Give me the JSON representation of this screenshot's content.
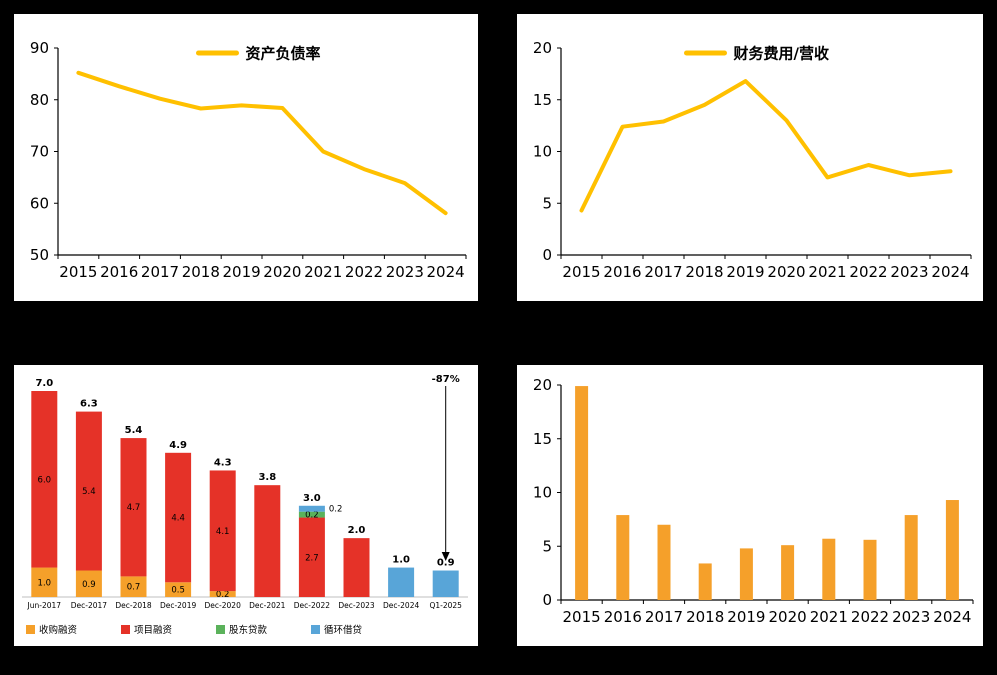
{
  "page": {
    "background": "#000000",
    "panel_background": "#FFFFFF"
  },
  "colors": {
    "yellow": "#FFC000",
    "orange": "#F5A02A",
    "red": "#E53228",
    "green": "#5BB25B",
    "blue": "#58A5D8",
    "axis": "#000000",
    "baseline_gray": "#BFBFBF",
    "small_text": "#333333"
  },
  "chart_data": [
    {
      "id": "tl",
      "type": "line",
      "legend": "资产负债率",
      "categories": [
        "2015",
        "2016",
        "2017",
        "2018",
        "2019",
        "2020",
        "2021",
        "2022",
        "2023",
        "2024"
      ],
      "values": [
        85.2,
        82.6,
        80.2,
        78.3,
        78.9,
        78.4,
        70.0,
        66.6,
        63.9,
        58.1
      ],
      "ylim": [
        50,
        90
      ],
      "yticks": [
        50,
        60,
        70,
        80,
        90
      ],
      "line_color_key": "yellow",
      "legend_position": "top-center",
      "grid": false
    },
    {
      "id": "tr",
      "type": "line",
      "legend": "财务费用/营收",
      "categories": [
        "2015",
        "2016",
        "2017",
        "2018",
        "2019",
        "2020",
        "2021",
        "2022",
        "2023",
        "2024"
      ],
      "values": [
        4.3,
        12.4,
        12.9,
        14.5,
        16.8,
        13.0,
        7.5,
        8.7,
        7.7,
        8.1
      ],
      "ylim": [
        0,
        20
      ],
      "yticks": [
        0,
        5,
        10,
        15,
        20
      ],
      "line_color_key": "yellow",
      "legend_position": "top-center",
      "grid": false
    },
    {
      "id": "bl",
      "type": "stacked-bar",
      "categories": [
        "Jun-2017",
        "Dec-2017",
        "Dec-2018",
        "Dec-2019",
        "Dec-2020",
        "Dec-2021",
        "Dec-2022",
        "Dec-2023",
        "Dec-2024",
        "Q1-2025"
      ],
      "series": [
        {
          "name": "收购融资",
          "color_key": "orange",
          "values": [
            1.0,
            0.9,
            0.7,
            0.5,
            0.2,
            0,
            0,
            0,
            0,
            0
          ],
          "labels": [
            "1.0",
            "0.9",
            "0.7",
            "0.5",
            "0.2",
            null,
            null,
            null,
            null,
            null
          ]
        },
        {
          "name": "项目融资",
          "color_key": "red",
          "values": [
            6.0,
            5.4,
            4.7,
            4.4,
            4.1,
            3.8,
            2.7,
            2.0,
            0,
            0
          ],
          "labels": [
            "6.0",
            "5.4",
            "4.7",
            "4.4",
            "4.1",
            null,
            "2.7",
            null,
            null,
            null
          ]
        },
        {
          "name": "股东贷款",
          "color_key": "green",
          "values": [
            0,
            0,
            0,
            0,
            0,
            0,
            0.2,
            0,
            0,
            0
          ],
          "labels": [
            null,
            null,
            null,
            null,
            null,
            null,
            "0.2",
            null,
            null,
            null
          ]
        },
        {
          "name": "循环借贷",
          "color_key": "blue",
          "values": [
            0,
            0,
            0,
            0,
            0,
            0,
            0.2,
            0,
            1.0,
            0.9
          ],
          "labels": [
            null,
            null,
            null,
            null,
            null,
            null,
            "0.2",
            null,
            null,
            null
          ],
          "label_pos": "right"
        }
      ],
      "totals": [
        "7.0",
        "6.3",
        "5.4",
        "4.9",
        "4.3",
        "3.8",
        "3.0",
        "2.0",
        "1.0",
        "0.9"
      ],
      "ymax": 7.0,
      "annotation": {
        "text": "-87%",
        "target_index": 9
      },
      "legend": [
        "收购融资",
        "项目融资",
        "股东贷款",
        "循环借贷"
      ],
      "grid": false
    },
    {
      "id": "br",
      "type": "bar",
      "categories": [
        "2015",
        "2016",
        "2017",
        "2018",
        "2019",
        "2020",
        "2021",
        "2022",
        "2023",
        "2024"
      ],
      "values": [
        19.9,
        7.9,
        7.0,
        3.4,
        4.8,
        5.1,
        5.7,
        5.6,
        7.9,
        9.3
      ],
      "ylim": [
        0,
        20
      ],
      "yticks": [
        0,
        5,
        10,
        15,
        20
      ],
      "bar_color_key": "orange",
      "grid": false
    }
  ]
}
